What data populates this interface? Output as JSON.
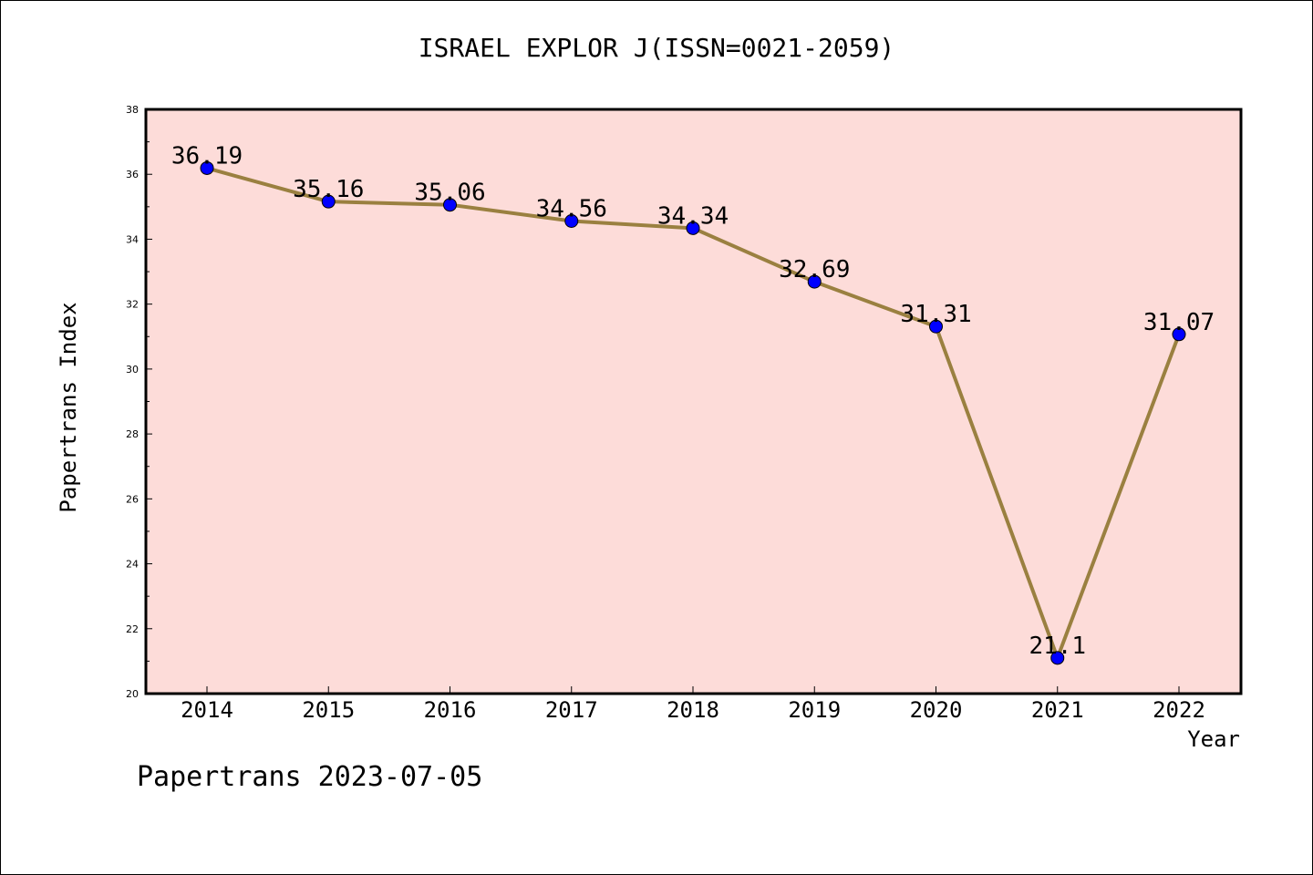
{
  "chart_data": {
    "type": "line",
    "title": "ISRAEL EXPLOR J(ISSN=0021-2059)",
    "xlabel": "Year",
    "ylabel": "Papertrans Index",
    "categories": [
      "2014",
      "2015",
      "2016",
      "2017",
      "2018",
      "2019",
      "2020",
      "2021",
      "2022"
    ],
    "series": [
      {
        "values": [
          36.19,
          35.16,
          35.06,
          34.56,
          34.34,
          32.69,
          31.31,
          21.1,
          31.07
        ],
        "labels": [
          "36.19",
          "35.16",
          "35.06",
          "34.56",
          "34.34",
          "32.69",
          "31.31",
          "21.1",
          "31.07"
        ],
        "line_color": "#9a8040",
        "marker_color": "#0000ff"
      }
    ],
    "ylim": [
      20,
      38
    ],
    "yticks": [
      "20",
      "22",
      "24",
      "26",
      "28",
      "30",
      "32",
      "34",
      "36",
      "38"
    ],
    "plot_background": "#fddcd9",
    "grid": false,
    "legend": "none"
  },
  "footer": "Papertrans 2023-07-05"
}
